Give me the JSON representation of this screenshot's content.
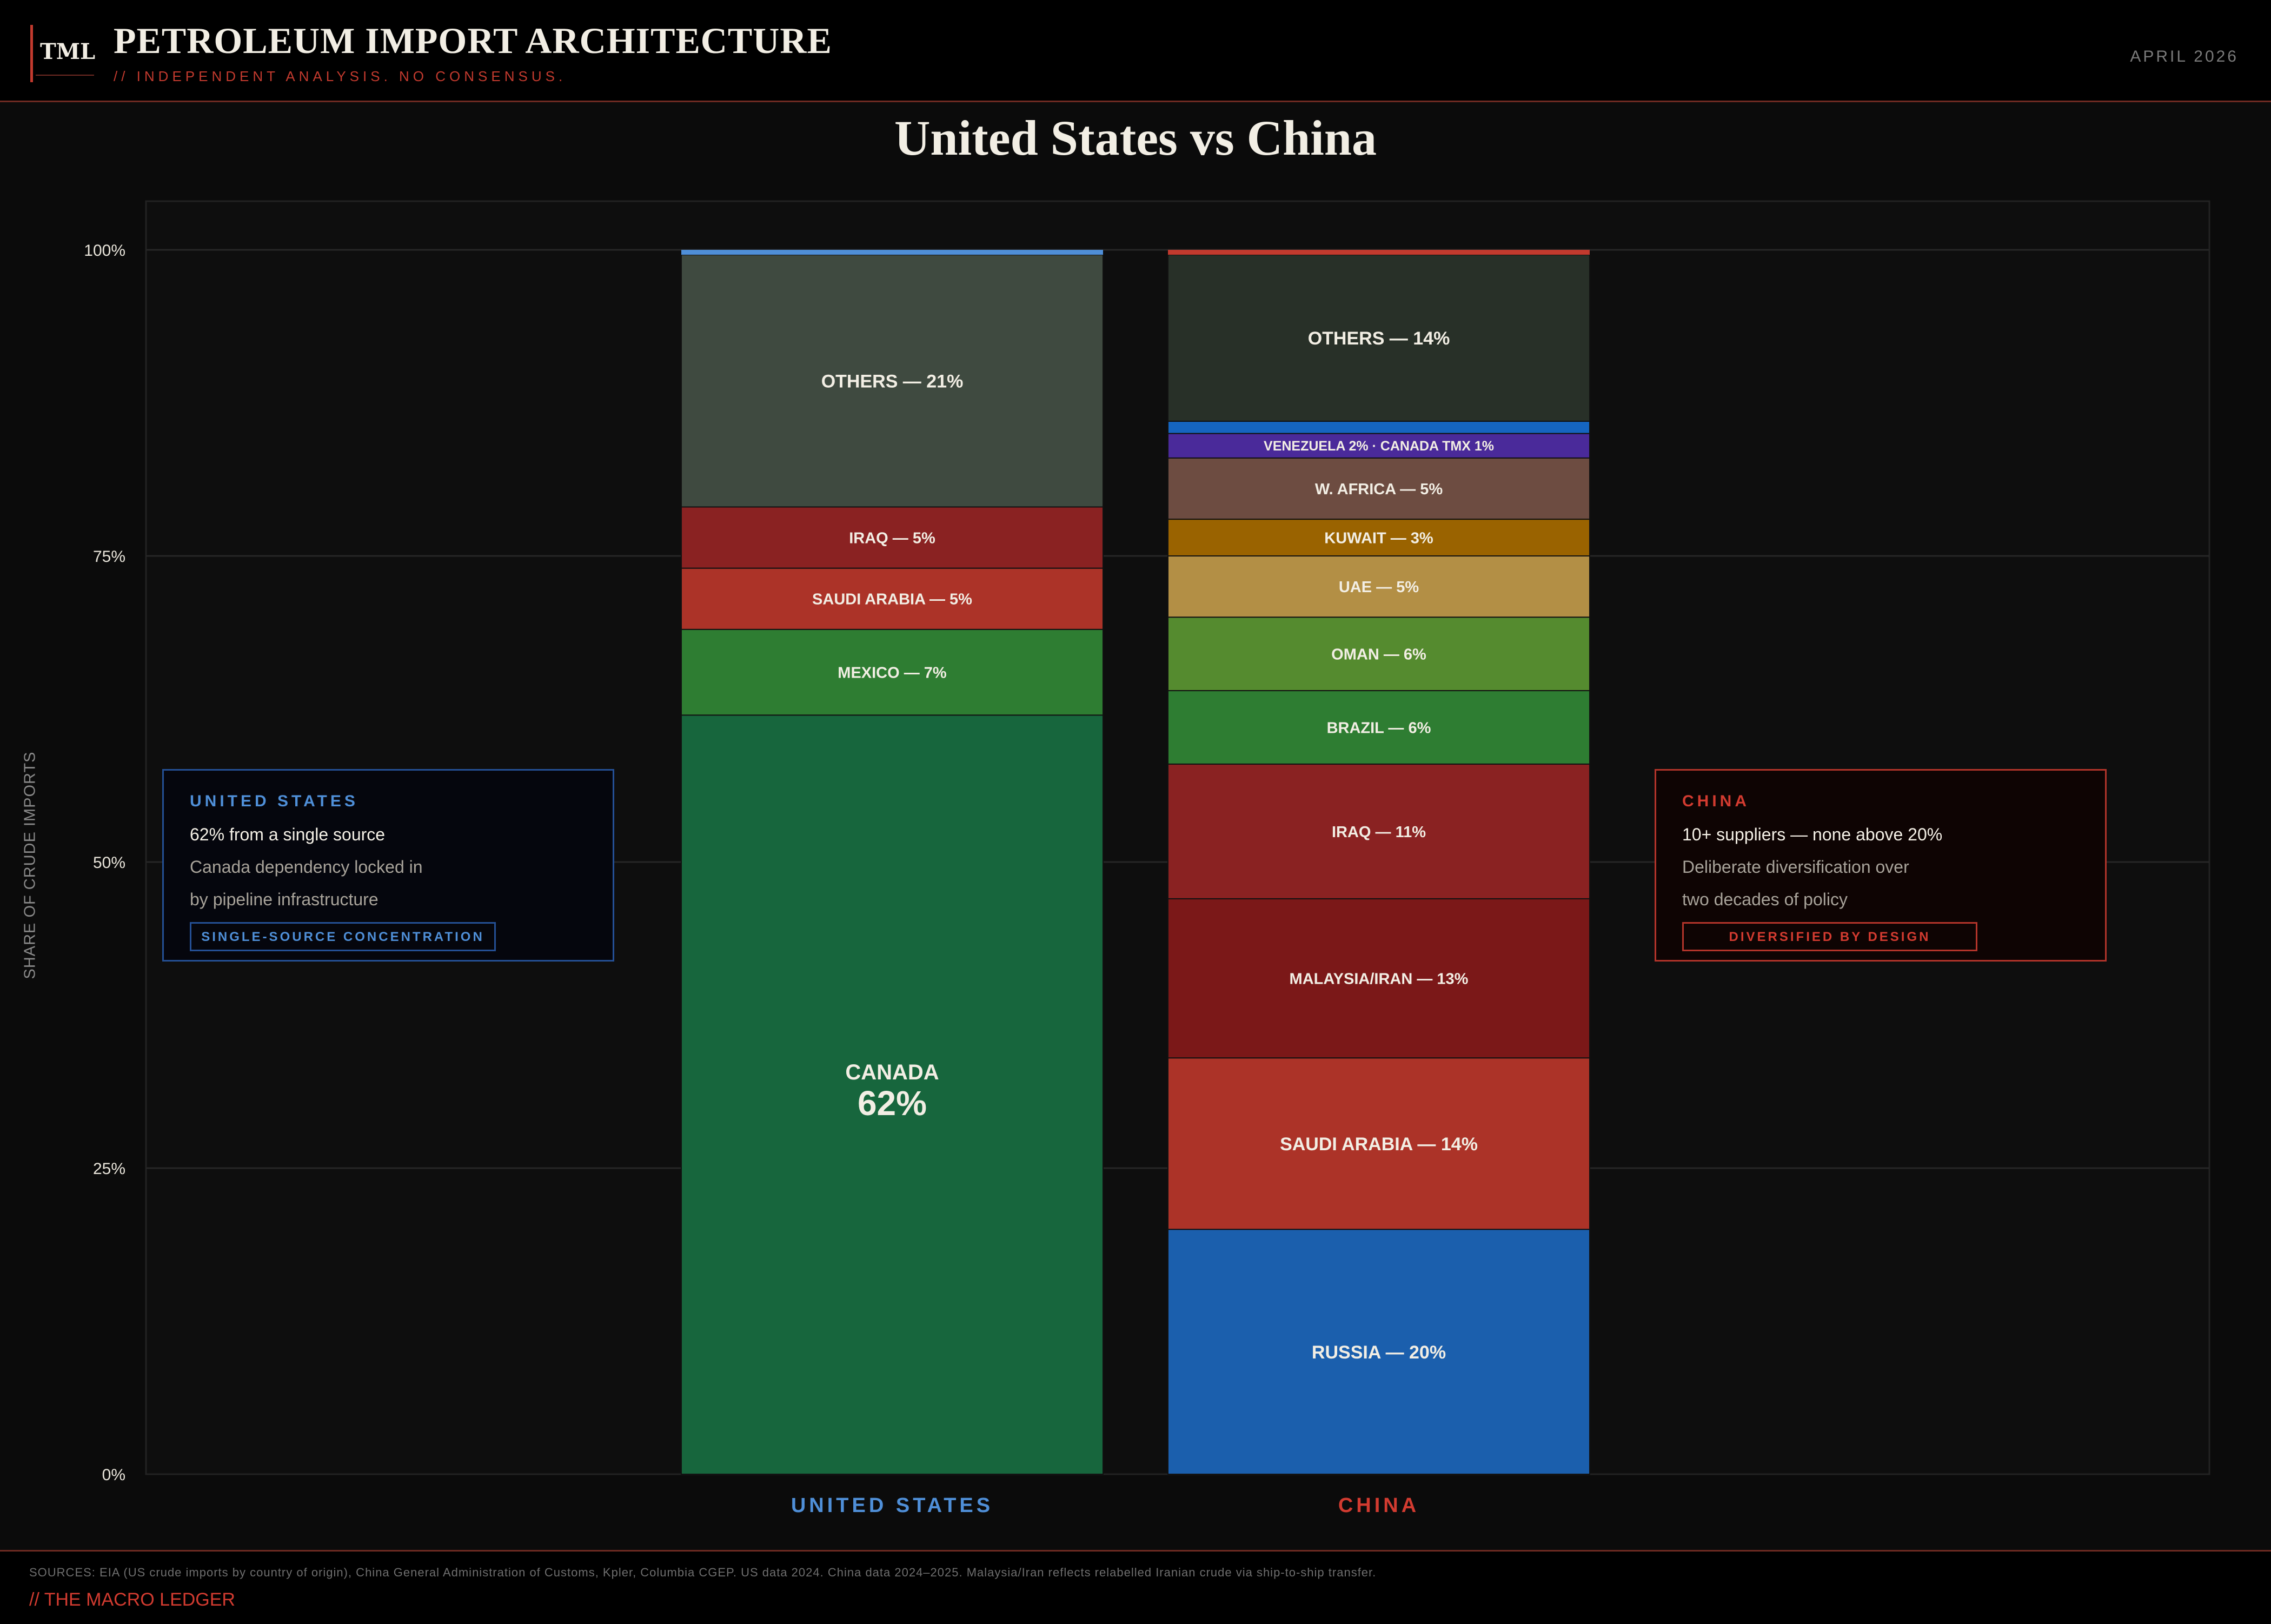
{
  "header": {
    "logo": "TML",
    "title": "PETROLEUM IMPORT ARCHITECTURE",
    "subtitle": "// INDEPENDENT ANALYSIS. NO CONSENSUS.",
    "date": "APRIL 2026"
  },
  "chart_data": {
    "type": "bar",
    "stacked": true,
    "title": "United States vs China",
    "ylabel": "SHARE OF CRUDE IMPORTS",
    "ylim": [
      0,
      100
    ],
    "yticks": [
      "0%",
      "25%",
      "50%",
      "75%",
      "100%"
    ],
    "grid": true,
    "categories": [
      "UNITED STATES",
      "CHINA"
    ],
    "category_colors": [
      "#4f8fd8",
      "#d23b30"
    ],
    "stacks": [
      {
        "category": "UNITED STATES",
        "segments": [
          {
            "name": "CANADA",
            "label": "CANADA",
            "value_label": "62%",
            "value": 62,
            "color": "#17663d"
          },
          {
            "name": "MEXICO",
            "label": "MEXICO — 7%",
            "value": 7,
            "color": "#2e7d32"
          },
          {
            "name": "SAUDI ARABIA",
            "label": "SAUDI ARABIA — 5%",
            "value": 5,
            "color": "#ac3328"
          },
          {
            "name": "IRAQ",
            "label": "IRAQ — 5%",
            "value": 5,
            "color": "#8a2222"
          },
          {
            "name": "OTHERS",
            "label": "OTHERS — 21%",
            "value": 20.6,
            "color": "#3f4a40"
          },
          {
            "name": "",
            "label": "",
            "value": 0.4,
            "color": "#4f8fd8"
          }
        ]
      },
      {
        "category": "CHINA",
        "segments": [
          {
            "name": "RUSSIA",
            "label": "RUSSIA — 20%",
            "value": 20,
            "color": "#1b5fad"
          },
          {
            "name": "SAUDI ARABIA",
            "label": "SAUDI ARABIA — 14%",
            "value": 14,
            "color": "#ac3328"
          },
          {
            "name": "MALAYSIA/IRAN",
            "label": "MALAYSIA/IRAN — 13%",
            "value": 13,
            "color": "#7b1818"
          },
          {
            "name": "IRAQ",
            "label": "IRAQ — 11%",
            "value": 11,
            "color": "#8a2222"
          },
          {
            "name": "BRAZIL",
            "label": "BRAZIL — 6%",
            "value": 6,
            "color": "#2e7d32"
          },
          {
            "name": "OMAN",
            "label": "OMAN — 6%",
            "value": 6,
            "color": "#558b2f"
          },
          {
            "name": "UAE",
            "label": "UAE — 5%",
            "value": 5,
            "color": "#b38f45"
          },
          {
            "name": "KUWAIT",
            "label": "KUWAIT — 3%",
            "value": 3,
            "color": "#9a6300"
          },
          {
            "name": "W. AFRICA",
            "label": "W. AFRICA — 5%",
            "value": 5,
            "color": "#6d4c41"
          },
          {
            "name": "VENEZUELA",
            "label": "VENEZUELA 2% · CANADA TMX 1%",
            "value": 2,
            "color": "#4a2a9a"
          },
          {
            "name": "CANADA TMX",
            "label": "",
            "value": 1,
            "color": "#1565c0"
          },
          {
            "name": "OTHERS",
            "label": "OTHERS — 14%",
            "value": 13.6,
            "color": "#283028"
          },
          {
            "name": "",
            "label": "",
            "value": 0.4,
            "color": "#c23a2e"
          }
        ]
      }
    ]
  },
  "callouts": {
    "us": {
      "heading": "UNITED STATES",
      "main": "62% from a single source",
      "line1": "Canada dependency locked in",
      "line2": "by pipeline infrastructure",
      "tag": "SINGLE-SOURCE CONCENTRATION"
    },
    "china": {
      "heading": "CHINA",
      "main": "10+ suppliers — none above 20%",
      "line1": "Deliberate diversification over",
      "line2": "two decades of policy",
      "tag": "DIVERSIFIED BY DESIGN"
    }
  },
  "footer": {
    "sources": "SOURCES: EIA (US crude imports by country of origin), China General Administration of Customs, Kpler, Columbia CGEP. US data 2024. China data 2024–2025. Malaysia/Iran reflects relabelled Iranian crude via ship-to-ship transfer.",
    "brand": "// THE MACRO LEDGER"
  }
}
